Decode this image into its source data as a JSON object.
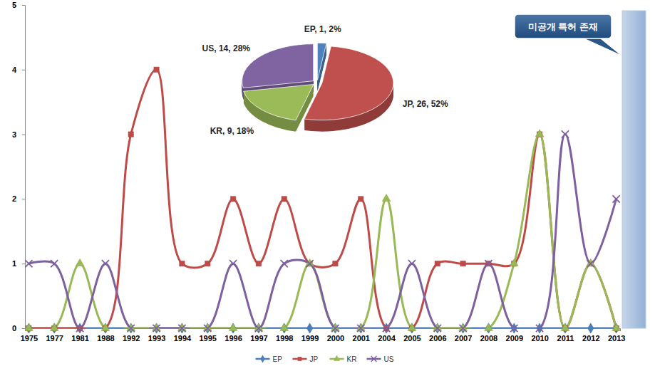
{
  "chart_data": [
    {
      "type": "line",
      "categories": [
        "1975",
        "1977",
        "1981",
        "1988",
        "1992",
        "1993",
        "1994",
        "1995",
        "1996",
        "1997",
        "1998",
        "1999",
        "2000",
        "2001",
        "2004",
        "2005",
        "2006",
        "2007",
        "2008",
        "2009",
        "2010",
        "2011",
        "2012",
        "2013"
      ],
      "series": [
        {
          "name": "EP",
          "color": "#4a7ebb",
          "marker": "diamond",
          "values": [
            0,
            0,
            0,
            0,
            0,
            0,
            0,
            0,
            0,
            0,
            0,
            0,
            0,
            0,
            0,
            0,
            0,
            0,
            0,
            0,
            0,
            0,
            0,
            0
          ]
        },
        {
          "name": "JP",
          "color": "#be4b48",
          "marker": "square",
          "values": [
            0,
            0,
            0,
            0,
            3,
            4,
            1,
            1,
            2,
            1,
            2,
            1,
            1,
            2,
            0,
            0,
            1,
            1,
            1,
            1,
            3,
            0,
            1,
            0
          ]
        },
        {
          "name": "KR",
          "color": "#98b954",
          "marker": "triangle",
          "values": [
            0,
            0,
            1,
            0,
            0,
            0,
            0,
            0,
            0,
            0,
            0,
            1,
            0,
            0,
            2,
            0,
            0,
            0,
            0,
            1,
            3,
            0,
            1,
            0
          ]
        },
        {
          "name": "US",
          "color": "#7d60a0",
          "marker": "x",
          "values": [
            1,
            1,
            0,
            1,
            0,
            0,
            0,
            0,
            1,
            0,
            1,
            1,
            0,
            0,
            0,
            1,
            0,
            0,
            1,
            0,
            0,
            3,
            1,
            2
          ]
        }
      ],
      "ylim": [
        0,
        5
      ],
      "yticks": [
        0,
        1,
        2,
        3,
        4,
        5
      ],
      "grid": false,
      "legend": "bottom",
      "annotation": "미공개 특허 존재"
    },
    {
      "type": "pie",
      "categories": [
        "EP",
        "JP",
        "KR",
        "US"
      ],
      "values": [
        1,
        26,
        9,
        14
      ],
      "value_labels": [
        "EP, 1, 2%",
        "JP, 26, 52%",
        "KR, 9, 18%",
        "US, 14, 28%"
      ],
      "colors": [
        "#4f81bd",
        "#c0504d",
        "#9bbb59",
        "#8064a2"
      ],
      "data_labels": true
    }
  ]
}
